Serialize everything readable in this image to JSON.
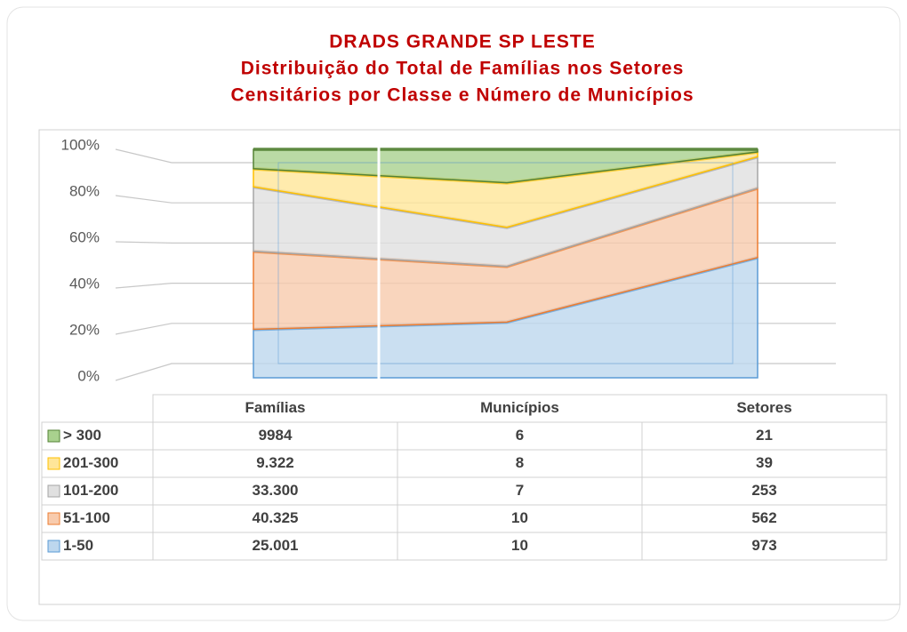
{
  "chart_data": {
    "type": "area",
    "stacking": "percent",
    "title": [
      "DRADS GRANDE SP LESTE",
      "Distribuição do Total de Famílias nos Setores",
      "Censitários por Classe e Número de Municípios"
    ],
    "categories": [
      "Famílias",
      "Municípios",
      "Setores"
    ],
    "series": [
      {
        "name": "> 300",
        "color": "#a9d18e",
        "edge": "#548235",
        "values": [
          9984,
          6,
          21
        ]
      },
      {
        "name": "201-300",
        "color": "#ffe699",
        "edge": "#ffc000",
        "values": [
          9322,
          8,
          39
        ],
        "value_labels": [
          "9.322",
          "8",
          "39"
        ]
      },
      {
        "name": "101-200",
        "color": "#e0e0e0",
        "edge": "#a5a5a5",
        "values": [
          33300,
          7,
          253
        ],
        "value_labels": [
          "33.300",
          "7",
          "253"
        ]
      },
      {
        "name": "51-100",
        "color": "#f8cbad",
        "edge": "#ed7d31",
        "values": [
          40325,
          10,
          562
        ],
        "value_labels": [
          "40.325",
          "10",
          "562"
        ]
      },
      {
        "name": "1-50",
        "color": "#bdd7ee",
        "edge": "#5b9bd5",
        "values": [
          25001,
          10,
          973
        ],
        "value_labels": [
          "25.001",
          "10",
          "973"
        ]
      }
    ],
    "ylim": [
      0,
      100
    ],
    "yticks": [
      {
        "value": 0,
        "label": "0%"
      },
      {
        "value": 20,
        "label": "20%"
      },
      {
        "value": 40,
        "label": "40%"
      },
      {
        "value": 60,
        "label": "60%"
      },
      {
        "value": 80,
        "label": "80%"
      },
      {
        "value": 100,
        "label": "100%"
      }
    ],
    "grid": true
  }
}
